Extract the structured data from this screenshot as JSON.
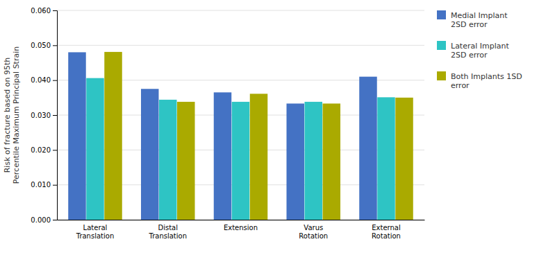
{
  "chart_data": {
    "type": "bar",
    "categories": [
      "Lateral\nTranslation",
      "Distal\nTranslation",
      "Extension",
      "Varus\nRotation",
      "External\nRotation"
    ],
    "series": [
      {
        "name": "Medial Implant\n2SD error",
        "color": "#4472C4",
        "values": [
          0.048,
          0.0375,
          0.0365,
          0.0333,
          0.041
        ]
      },
      {
        "name": "Lateral Implant\n2SD error",
        "color": "#2EC4C4",
        "values": [
          0.0406,
          0.0344,
          0.0338,
          0.0338,
          0.0351
        ]
      },
      {
        "name": "Both Implants 1SD\nerror",
        "color": "#AAAA00",
        "values": [
          0.0481,
          0.0338,
          0.0361,
          0.0333,
          0.035
        ]
      }
    ],
    "ylabel": "Risk of fracture based on 95th\nPercentile Maximum Principal Strain",
    "ylim": [
      0.0,
      0.06
    ],
    "yticks": [
      {
        "value": 0.0,
        "label": "0.000"
      },
      {
        "value": 0.01,
        "label": "0.010"
      },
      {
        "value": 0.02,
        "label": "0.020"
      },
      {
        "value": 0.03,
        "label": "0.030"
      },
      {
        "value": 0.04,
        "label": "0.040"
      },
      {
        "value": 0.05,
        "label": "0.050"
      },
      {
        "value": 0.06,
        "label": "0.060"
      }
    ],
    "grid": true,
    "legend": "right"
  }
}
